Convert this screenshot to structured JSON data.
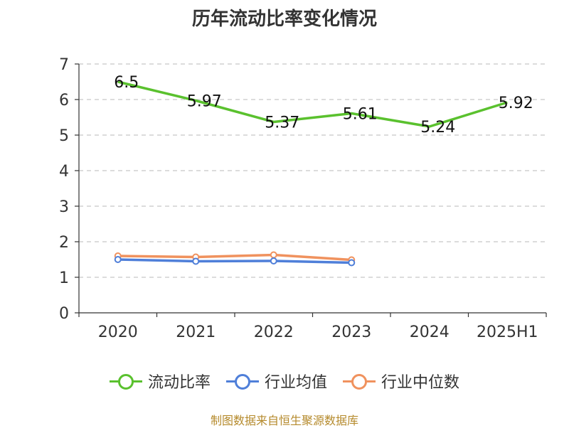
{
  "chart_data": {
    "type": "line",
    "title": "历年流动比率变化情况",
    "categories": [
      "2020",
      "2021",
      "2022",
      "2023",
      "2024",
      "2025H1"
    ],
    "ylim": [
      0,
      7
    ],
    "yticks": [
      "0",
      "1",
      "2",
      "3",
      "4",
      "5",
      "6",
      "7"
    ],
    "grid": true,
    "legend_position": "bottom",
    "series": [
      {
        "name": "流动比率",
        "color": "#5ac12e",
        "values": [
          6.5,
          5.97,
          5.37,
          5.61,
          5.24,
          5.92
        ],
        "labels": [
          "6.5",
          "5.97",
          "5.37",
          "5.61",
          "5.24",
          "5.92"
        ]
      },
      {
        "name": "行业均值",
        "color": "#4f7fd9",
        "values": [
          1.5,
          1.45,
          1.46,
          1.41,
          null,
          null
        ]
      },
      {
        "name": "行业中位数",
        "color": "#f0925e",
        "values": [
          1.6,
          1.57,
          1.63,
          1.49,
          null,
          null
        ]
      }
    ]
  },
  "footer": "制图数据来自恒生聚源数据库"
}
